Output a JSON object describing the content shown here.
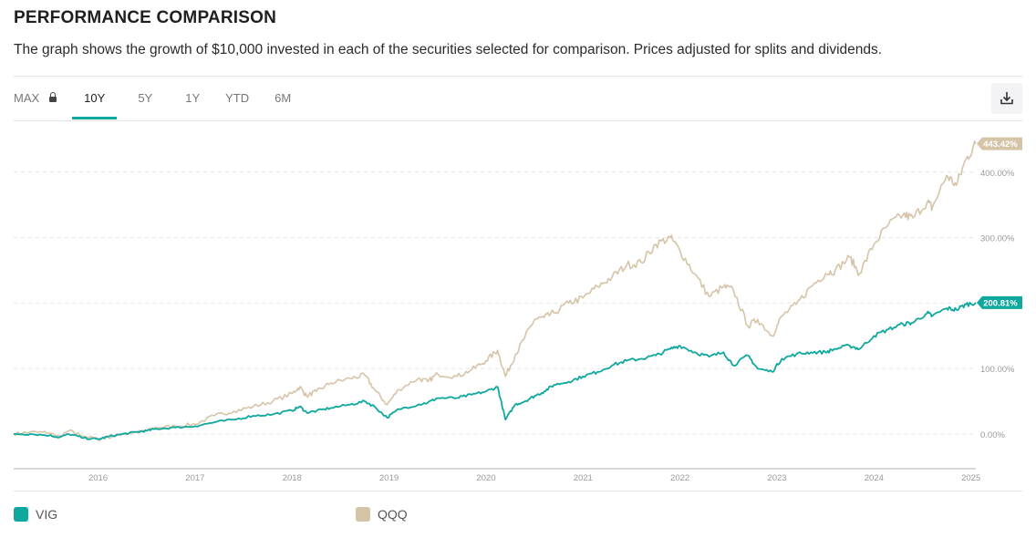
{
  "header": {
    "title": "PERFORMANCE COMPARISON",
    "subtitle": "The graph shows the growth of $10,000 invested in each of the securities selected for comparison. Prices adjusted for splits and dividends."
  },
  "tabs": [
    {
      "label": "MAX",
      "locked": true,
      "active": false
    },
    {
      "label": "10Y",
      "active": true
    },
    {
      "label": "5Y",
      "active": false
    },
    {
      "label": "1Y",
      "active": false
    },
    {
      "label": "YTD",
      "active": false
    },
    {
      "label": "6M",
      "active": false
    }
  ],
  "toolbar": {
    "download_icon": "download-icon"
  },
  "legend": [
    {
      "label": "VIG",
      "color": "#0fa89e"
    },
    {
      "label": "QQQ",
      "color": "#d6c4a8"
    }
  ],
  "chart_data": {
    "type": "line",
    "title": "",
    "xlabel": "",
    "ylabel": "",
    "x_ticks": [
      "2016",
      "2017",
      "2018",
      "2019",
      "2020",
      "2021",
      "2022",
      "2023",
      "2024",
      "2025"
    ],
    "y_ticks": [
      "0.00%",
      "100.00%",
      "200.00%",
      "300.00%",
      "400.00%"
    ],
    "y_tick_values": [
      0,
      100,
      200,
      300,
      400
    ],
    "xlim": [
      2015.13,
      2025.05
    ],
    "ylim": [
      -55,
      470
    ],
    "grid": "horizontal-dashed",
    "legend_position": "bottom",
    "series": [
      {
        "name": "QQQ",
        "color": "#d6c4a8",
        "end_label": "443.42%",
        "x": [
          2015.13,
          2015.3,
          2015.5,
          2015.6,
          2015.7,
          2015.85,
          2016.0,
          2016.1,
          2016.25,
          2016.4,
          2016.5,
          2016.6,
          2016.8,
          2017.0,
          2017.2,
          2017.4,
          2017.6,
          2017.8,
          2018.0,
          2018.08,
          2018.15,
          2018.25,
          2018.4,
          2018.6,
          2018.75,
          2018.85,
          2018.98,
          2019.1,
          2019.3,
          2019.4,
          2019.5,
          2019.7,
          2019.85,
          2020.0,
          2020.12,
          2020.2,
          2020.3,
          2020.4,
          2020.5,
          2020.6,
          2020.7,
          2020.85,
          2021.0,
          2021.15,
          2021.3,
          2021.45,
          2021.6,
          2021.75,
          2021.9,
          2022.0,
          2022.15,
          2022.3,
          2022.45,
          2022.55,
          2022.7,
          2022.8,
          2022.95,
          2023.05,
          2023.2,
          2023.35,
          2023.5,
          2023.6,
          2023.75,
          2023.85,
          2024.0,
          2024.15,
          2024.3,
          2024.4,
          2024.55,
          2024.6,
          2024.75,
          2024.85,
          2024.95,
          2025.05
        ],
        "y": [
          0,
          3,
          2,
          -5,
          5,
          -3,
          -8,
          -5,
          0,
          3,
          5,
          10,
          12,
          15,
          28,
          35,
          42,
          50,
          62,
          72,
          58,
          65,
          78,
          85,
          90,
          68,
          45,
          68,
          85,
          80,
          92,
          88,
          98,
          112,
          128,
          88,
          120,
          148,
          175,
          178,
          185,
          200,
          208,
          225,
          240,
          258,
          262,
          290,
          300,
          280,
          245,
          210,
          225,
          220,
          165,
          175,
          150,
          180,
          198,
          225,
          245,
          250,
          270,
          245,
          290,
          320,
          335,
          330,
          355,
          345,
          395,
          380,
          420,
          443.42
        ]
      },
      {
        "name": "VIG",
        "color": "#0fa89e",
        "end_label": "200.81%",
        "x": [
          2015.13,
          2015.3,
          2015.5,
          2015.6,
          2015.7,
          2015.85,
          2016.0,
          2016.1,
          2016.25,
          2016.4,
          2016.5,
          2016.6,
          2016.8,
          2017.0,
          2017.2,
          2017.4,
          2017.6,
          2017.8,
          2018.0,
          2018.08,
          2018.15,
          2018.25,
          2018.4,
          2018.6,
          2018.75,
          2018.85,
          2018.98,
          2019.1,
          2019.3,
          2019.4,
          2019.5,
          2019.7,
          2019.85,
          2020.0,
          2020.12,
          2020.2,
          2020.3,
          2020.4,
          2020.5,
          2020.6,
          2020.7,
          2020.85,
          2021.0,
          2021.15,
          2021.3,
          2021.45,
          2021.6,
          2021.75,
          2021.9,
          2022.0,
          2022.15,
          2022.3,
          2022.45,
          2022.55,
          2022.7,
          2022.8,
          2022.95,
          2023.05,
          2023.2,
          2023.35,
          2023.5,
          2023.6,
          2023.75,
          2023.85,
          2024.0,
          2024.15,
          2024.3,
          2024.4,
          2024.55,
          2024.6,
          2024.75,
          2024.85,
          2024.95,
          2025.05
        ],
        "y": [
          0,
          0,
          -2,
          -5,
          0,
          -6,
          -8,
          -4,
          0,
          3,
          5,
          8,
          10,
          12,
          18,
          22,
          28,
          30,
          36,
          42,
          33,
          35,
          40,
          45,
          50,
          42,
          25,
          38,
          45,
          48,
          55,
          55,
          60,
          65,
          72,
          22,
          45,
          50,
          58,
          65,
          75,
          80,
          88,
          95,
          105,
          112,
          115,
          120,
          130,
          135,
          125,
          118,
          125,
          105,
          120,
          100,
          95,
          115,
          122,
          125,
          125,
          130,
          135,
          130,
          150,
          160,
          168,
          170,
          185,
          180,
          192,
          190,
          198,
          200.81
        ]
      }
    ]
  }
}
